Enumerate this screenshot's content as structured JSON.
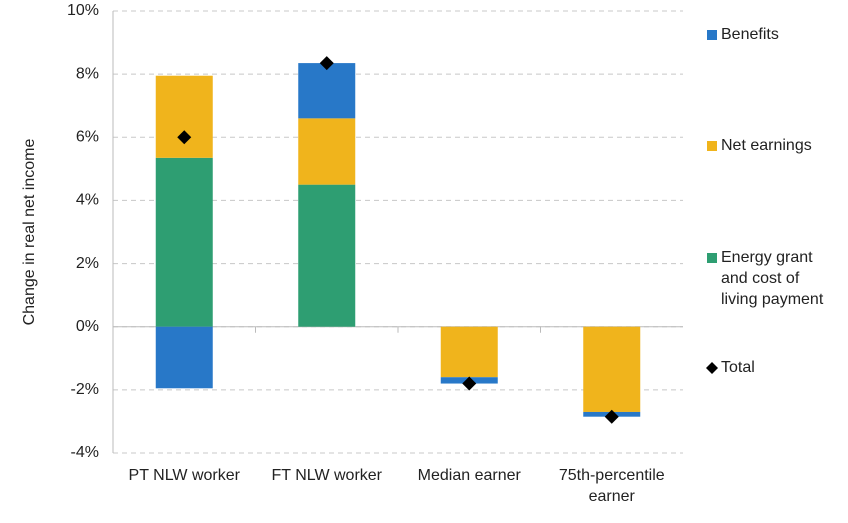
{
  "chart_data": {
    "type": "bar",
    "stacked": true,
    "y_label": "Change in real net income",
    "categories": [
      "PT NLW worker",
      "FT NLW worker",
      "Median earner",
      "75th-percentile earner"
    ],
    "series": [
      {
        "name": "Energy grant and cost of living payment",
        "color": "#2e9e72",
        "values": [
          5.35,
          4.5,
          0,
          0
        ]
      },
      {
        "name": "Net earnings",
        "color": "#f0b41c",
        "values": [
          2.6,
          2.1,
          -1.6,
          -2.7
        ]
      },
      {
        "name": "Benefits",
        "color": "#2878c8",
        "values": [
          -1.95,
          1.75,
          -0.2,
          -0.15
        ]
      },
      {
        "name": "Total",
        "type": "scatter",
        "marker": "diamond",
        "color": "#000000",
        "values": [
          6.0,
          8.35,
          -1.8,
          -2.85
        ]
      }
    ],
    "legend_order": [
      2,
      1,
      0,
      3
    ],
    "ylim": [
      -4,
      10
    ],
    "yticks": [
      {
        "value": -4,
        "label": "-4%"
      },
      {
        "value": -2,
        "label": "-2%"
      },
      {
        "value": 0,
        "label": "0%"
      },
      {
        "value": 2,
        "label": "2%"
      },
      {
        "value": 4,
        "label": "4%"
      },
      {
        "value": 6,
        "label": "6%"
      },
      {
        "value": 8,
        "label": "8%"
      },
      {
        "value": 10,
        "label": "10%"
      }
    ],
    "grid": true
  }
}
